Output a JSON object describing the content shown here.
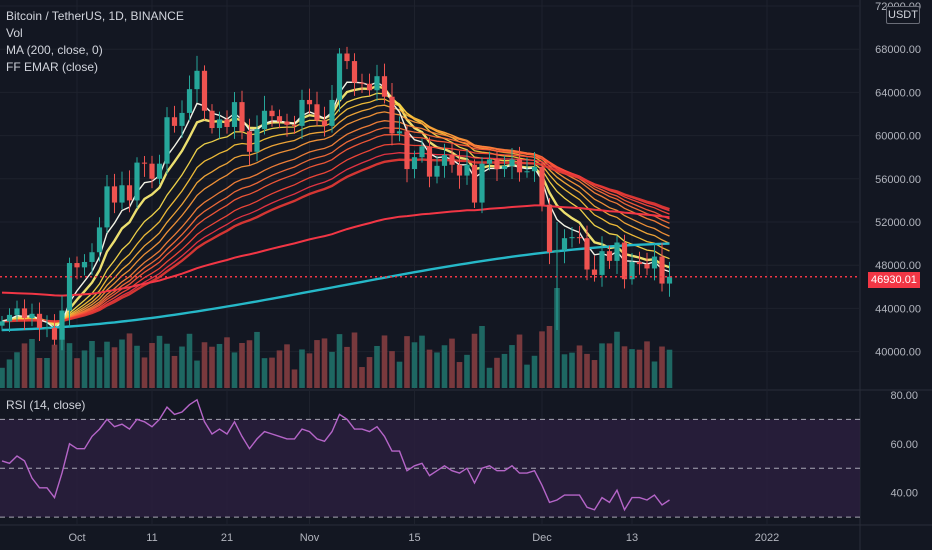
{
  "legend": {
    "title": "Bitcoin / TetherUS, 1D, BINANCE",
    "vol": "Vol",
    "ma": "MA (200, close, 0)",
    "ema": "FF EMAR (close)"
  },
  "rsi_legend": "RSI (14, close)",
  "currency": "USDT",
  "last_price_label": "46930.01",
  "colors": {
    "up": "#26a69a",
    "down": "#ef5350",
    "ma": "#26b8c8",
    "rsi": "#b565c8",
    "bg": "#131722"
  },
  "chart_data": [
    {
      "type": "candlestick",
      "title": "Bitcoin / TetherUS, 1D, BINANCE",
      "x_ticks": [
        "Oct",
        "11",
        "21",
        "Nov",
        "15",
        "Dec",
        "13",
        "2022"
      ],
      "y_ticks": [
        "72000.00",
        "68000.00",
        "64000.00",
        "60000.00",
        "56000.00",
        "52000.00",
        "48000.00",
        "44000.00",
        "40000.00"
      ],
      "ylim": [
        37000,
        72000
      ],
      "last_price": 46930.01,
      "period": [
        "2021-09-20",
        "2021-12-18"
      ],
      "closes": [
        42800,
        43400,
        44000,
        43100,
        43500,
        42200,
        42200,
        41100,
        43800,
        48200,
        47800,
        48300,
        49200,
        51500,
        55300,
        53800,
        55400,
        54000,
        57500,
        57400,
        56000,
        57400,
        61700,
        60900,
        62100,
        64300,
        66000,
        62300,
        60700,
        61500,
        60800,
        63100,
        60400,
        58500,
        60600,
        62300,
        61800,
        61300,
        61000,
        60900,
        63300,
        62900,
        61400,
        60900,
        63300,
        67600,
        66900,
        64900,
        64800,
        64200,
        65500,
        63600,
        60200,
        60400,
        56900,
        58000,
        59000,
        56200,
        57200,
        58200,
        57300,
        56300,
        57300,
        53800,
        57400,
        57800,
        56900,
        57200,
        57800,
        56600,
        56700,
        57100,
        53600,
        49200,
        49400,
        50500,
        50600,
        50500,
        47600,
        47100,
        49300,
        48400,
        50100,
        46700,
        48300,
        48100,
        47700,
        48800,
        46300,
        46930.01
      ],
      "ma200_start": 42000,
      "ma200_end": 50000,
      "series": [
        {
          "name": "MA (200, close, 0)"
        },
        {
          "name": "FF EMAR (close)"
        },
        {
          "name": "Vol"
        }
      ]
    },
    {
      "type": "line",
      "title": "RSI (14, close)",
      "y_ticks": [
        "80.00",
        "60.00",
        "40.00"
      ],
      "ylim": [
        28,
        82
      ],
      "bands": [
        30,
        50,
        70
      ],
      "values": [
        53,
        52,
        55,
        53,
        46,
        42,
        42,
        38,
        48,
        60,
        58,
        58,
        63,
        66,
        70,
        67,
        68,
        66,
        70,
        69,
        67,
        70,
        75,
        72,
        73,
        76,
        78,
        69,
        64,
        66,
        64,
        69,
        63,
        58,
        62,
        65,
        64,
        63,
        62,
        62,
        66,
        65,
        62,
        61,
        65,
        72,
        70,
        66,
        66,
        65,
        67,
        63,
        57,
        57,
        49,
        51,
        52,
        47,
        49,
        51,
        49,
        48,
        50,
        44,
        50,
        51,
        49,
        49,
        51,
        48,
        48,
        49,
        43,
        36,
        37,
        39,
        39,
        39,
        34,
        33,
        38,
        36,
        41,
        33,
        38,
        38,
        37,
        39,
        35,
        37
      ]
    }
  ]
}
